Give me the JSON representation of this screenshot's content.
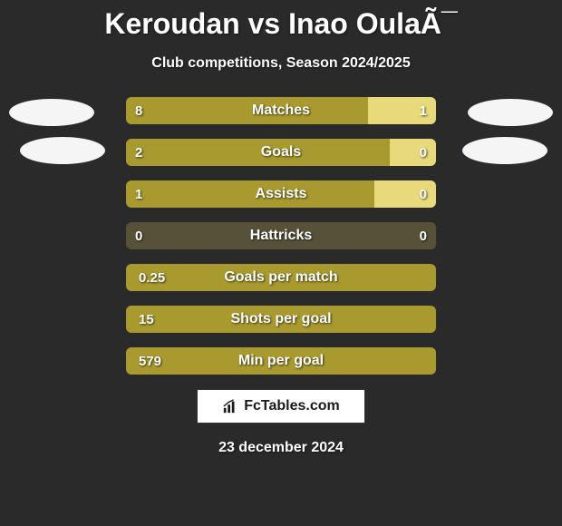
{
  "title": "Keroudan vs Inao OulaÃ¯",
  "subtitle": "Club competitions, Season 2024/2025",
  "footer_date": "23 december 2024",
  "logo_text": "FcTables.com",
  "colors": {
    "background": "#2a2a2a",
    "bar_primary": "#a99a2f",
    "bar_secondary": "#e8d97a",
    "bar_muted": "#585139",
    "text": "#ffffff",
    "avatar": "#f5f5f5"
  },
  "comparison_bars": [
    {
      "label": "Matches",
      "left_value": "8",
      "right_value": "1",
      "left_pct": 78,
      "right_pct": 22,
      "left_color": "#a99a2f",
      "right_color": "#e8d97a"
    },
    {
      "label": "Goals",
      "left_value": "2",
      "right_value": "0",
      "left_pct": 85,
      "right_pct": 15,
      "left_color": "#a99a2f",
      "right_color": "#e8d97a"
    },
    {
      "label": "Assists",
      "left_value": "1",
      "right_value": "0",
      "left_pct": 80,
      "right_pct": 20,
      "left_color": "#a99a2f",
      "right_color": "#e8d97a"
    },
    {
      "label": "Hattricks",
      "left_value": "0",
      "right_value": "0",
      "left_pct": 50,
      "right_pct": 50,
      "left_color": "#585139",
      "right_color": "#585139"
    }
  ],
  "single_bars": [
    {
      "label": "Goals per match",
      "value": "0.25",
      "color": "#a99a2f"
    },
    {
      "label": "Shots per goal",
      "value": "15",
      "color": "#a99a2f"
    },
    {
      "label": "Min per goal",
      "value": "579",
      "color": "#a99a2f"
    }
  ]
}
